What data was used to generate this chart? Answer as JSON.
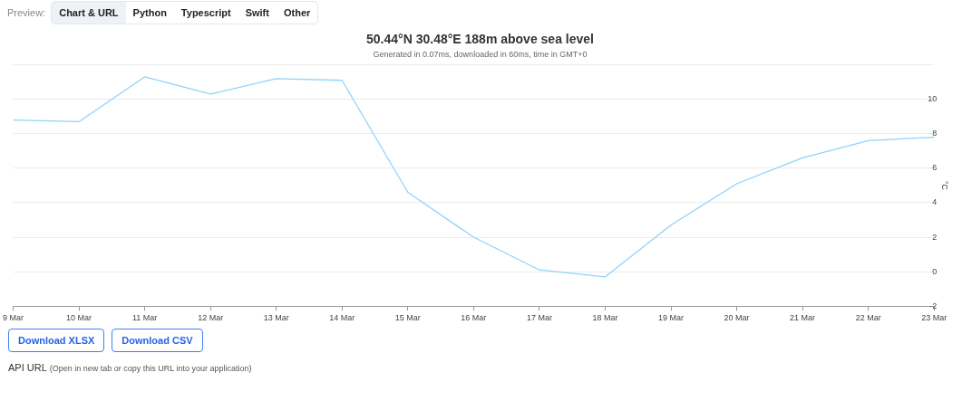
{
  "chart_data": {
    "type": "line",
    "title": "50.44°N 30.48°E 188m above sea level",
    "subtitle": "Generated in 0.07ms, downloaded in 60ms, time in GMT+0",
    "ylabel": "°C",
    "categories": [
      "9 Mar",
      "10 Mar",
      "11 Mar",
      "12 Mar",
      "13 Mar",
      "14 Mar",
      "15 Mar",
      "16 Mar",
      "17 Mar",
      "18 Mar",
      "19 Mar",
      "20 Mar",
      "21 Mar",
      "22 Mar",
      "23 Mar"
    ],
    "series": [
      {
        "color": "#8fd3fb",
        "values": [
          8.8,
          8.7,
          11.3,
          10.3,
          11.2,
          11.1,
          4.6,
          2.0,
          0.1,
          -0.3,
          2.7,
          5.1,
          6.6,
          7.6,
          7.8
        ]
      }
    ],
    "ylim": [
      -2,
      12
    ],
    "yticks": [
      -2,
      0,
      2,
      4,
      6,
      8,
      10,
      {
        "value": 12,
        "label": null
      }
    ],
    "grid": "y",
    "legend": false,
    "marker": "none",
    "line_style": "solid",
    "annotations": [
      "Preview:",
      "Chart & URL",
      "Python",
      "Typescript",
      "Swift",
      "Other",
      "Download XLSX",
      "Download CSV",
      "API URL",
      "(Open in new tab or copy this URL into your application)"
    ]
  }
}
